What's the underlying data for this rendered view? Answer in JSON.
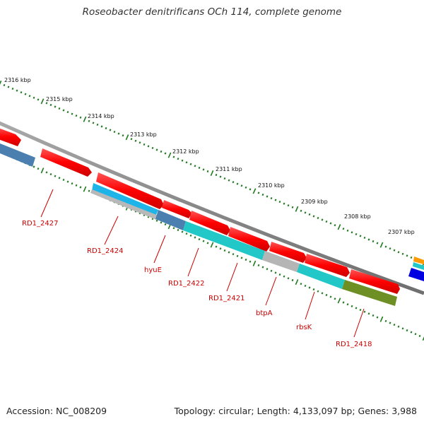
{
  "title": "Roseobacter denitrificans OCh 114, complete genome",
  "footer": {
    "accession": "Accession: NC_008209",
    "summary": "Topology: circular; Length: 4,133,097 bp; Genes: 3,988"
  },
  "colors": {
    "backbone": "#8c8c8c",
    "tick": "#1f7a1f",
    "forward_gene": "#ff1a1a",
    "reverse_gene_blue": "#4a7fb0",
    "reverse_gene_cyan": "#22c8c8",
    "reverse_gene_lightblue": "#1eb4e8",
    "reverse_gene_gray": "#b5b5b5",
    "reverse_gene_olive": "#6e8f23",
    "label": "#cc0000",
    "orange": "#ff9900",
    "dark_blue": "#0000e0"
  },
  "kbp_labels": [
    "2316 kbp",
    "2315 kbp",
    "2314 kbp",
    "2313 kbp",
    "2312 kbp",
    "2311 kbp",
    "2310 kbp",
    "2309 kbp",
    "2308 kbp",
    "2307 kbp"
  ],
  "gene_labels": [
    "RD1_2427",
    "RD1_2424",
    "hyuE",
    "RD1_2422",
    "RD1_2421",
    "btpA",
    "rbsK",
    "RD1_2418"
  ]
}
